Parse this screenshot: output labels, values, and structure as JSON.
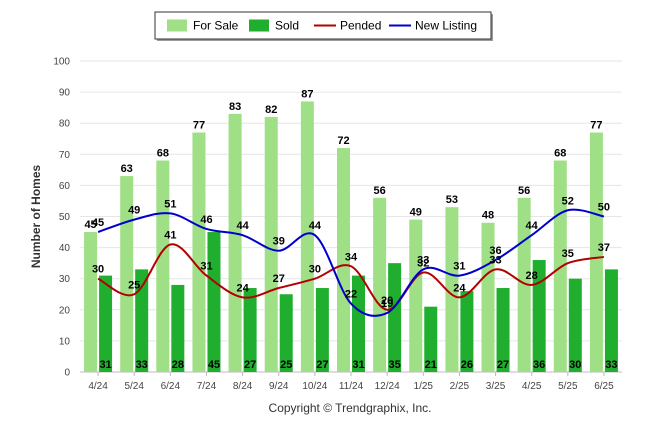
{
  "chart_data": {
    "type": "bar",
    "categories": [
      "4/24",
      "5/24",
      "6/24",
      "7/24",
      "8/24",
      "9/24",
      "10/24",
      "11/24",
      "12/24",
      "1/25",
      "2/25",
      "3/25",
      "4/25",
      "5/25",
      "6/25"
    ],
    "series": [
      {
        "name": "For Sale",
        "type": "bar",
        "color": "#9fdf86",
        "values": [
          45,
          63,
          68,
          77,
          83,
          82,
          87,
          72,
          56,
          49,
          53,
          48,
          56,
          68,
          77
        ]
      },
      {
        "name": "Sold",
        "type": "bar",
        "color": "#1fae2e",
        "values": [
          31,
          33,
          28,
          45,
          27,
          25,
          27,
          31,
          35,
          21,
          26,
          27,
          36,
          30,
          33
        ]
      },
      {
        "name": "Pended",
        "type": "line",
        "color": "#b30000",
        "values": [
          30,
          25,
          41,
          31,
          24,
          27,
          30,
          34,
          20,
          32,
          24,
          33,
          28,
          35,
          37
        ]
      },
      {
        "name": "New Listing",
        "type": "line",
        "color": "#0000cc",
        "values": [
          45,
          49,
          51,
          46,
          44,
          39,
          44,
          22,
          19,
          33,
          31,
          36,
          44,
          52,
          50
        ]
      }
    ],
    "ylabel": "Number of Homes",
    "ylim": [
      0,
      100
    ],
    "yticks": [
      0,
      10,
      20,
      30,
      40,
      50,
      60,
      70,
      80,
      90,
      100
    ],
    "grid": true,
    "legend": "top-center"
  },
  "footer": {
    "copyright": "Copyright © Trendgraphix, Inc."
  }
}
